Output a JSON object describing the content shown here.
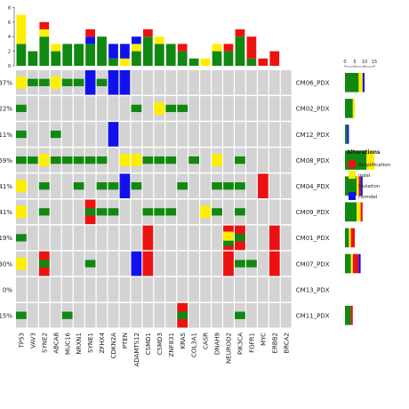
{
  "chart_data": {
    "type": "heatmap",
    "title": "",
    "genes": [
      "TP53",
      "VAV3",
      "SYNE2",
      "ABCA8",
      "MUC16",
      "NRXN1",
      "SYNE1",
      "ZFHX4",
      "CDKN2A",
      "PTEN",
      "ADAMTS12",
      "CSMD1",
      "CSMD3",
      "ZNF831",
      "KRAS",
      "COL3A1",
      "CASR",
      "DNAH9",
      "NEUROD2",
      "PIK3CA",
      "FGFR1",
      "MYC",
      "ERBB2",
      "BRCA2"
    ],
    "samples": [
      "CM06_PDX",
      "CM02_PDX",
      "CM12_PDX",
      "CM08_PDX",
      "CM04_PDX",
      "CM09_PDX",
      "CM01_PDX",
      "CM07_PDX",
      "CM13_PDX",
      "CM11_PDX"
    ],
    "frequency_labels": [
      "37%",
      "22%",
      "11%",
      "59%",
      "41%",
      "41%",
      "19%",
      "30%",
      "0%",
      "15%"
    ],
    "top_axis_ticks": [
      "0",
      "2",
      "4",
      "6",
      "8"
    ],
    "right_axis_ticks": [
      "0",
      "5",
      "10",
      "15"
    ],
    "legend": {
      "title": "Alterations",
      "items": [
        {
          "label": "Amplification",
          "color": "#ee1111"
        },
        {
          "label": "indel",
          "color": "#ffee00"
        },
        {
          "label": "Mutation",
          "color": "#118811"
        },
        {
          "label": "Homdel",
          "color": "#1111ee"
        }
      ]
    },
    "colors": {
      "background": "#d3d3d3",
      "amplification": "#ee1111",
      "indel": "#ffee00",
      "mutation": "#118811",
      "homdel": "#1111ee"
    },
    "cells": [
      {
        "sample": "CM06_PDX",
        "gene": "TP53",
        "types": [
          "indel"
        ]
      },
      {
        "sample": "CM06_PDX",
        "gene": "VAV3",
        "types": [
          "mutation"
        ]
      },
      {
        "sample": "CM06_PDX",
        "gene": "SYNE2",
        "types": [
          "mutation"
        ]
      },
      {
        "sample": "CM06_PDX",
        "gene": "ABCA8",
        "types": [
          "indel"
        ]
      },
      {
        "sample": "CM06_PDX",
        "gene": "MUC16",
        "types": [
          "mutation"
        ]
      },
      {
        "sample": "CM06_PDX",
        "gene": "NRXN1",
        "types": [
          "mutation"
        ]
      },
      {
        "sample": "CM06_PDX",
        "gene": "SYNE1",
        "types": [
          "homdel"
        ]
      },
      {
        "sample": "CM06_PDX",
        "gene": "ZFHX4",
        "types": [
          "mutation"
        ]
      },
      {
        "sample": "CM06_PDX",
        "gene": "CDKN2A",
        "types": [
          "homdel"
        ]
      },
      {
        "sample": "CM06_PDX",
        "gene": "PTEN",
        "types": [
          "homdel"
        ]
      },
      {
        "sample": "CM02_PDX",
        "gene": "TP53",
        "types": [
          "mutation"
        ]
      },
      {
        "sample": "CM02_PDX",
        "gene": "ADAMTS12",
        "types": [
          "mutation"
        ]
      },
      {
        "sample": "CM02_PDX",
        "gene": "CSMD3",
        "types": [
          "indel"
        ]
      },
      {
        "sample": "CM02_PDX",
        "gene": "ZNF831",
        "types": [
          "mutation"
        ]
      },
      {
        "sample": "CM02_PDX",
        "gene": "KRAS",
        "types": [
          "mutation"
        ]
      },
      {
        "sample": "CM12_PDX",
        "gene": "TP53",
        "types": [
          "mutation"
        ]
      },
      {
        "sample": "CM12_PDX",
        "gene": "ABCA8",
        "types": [
          "mutation"
        ]
      },
      {
        "sample": "CM12_PDX",
        "gene": "CDKN2A",
        "types": [
          "homdel"
        ]
      },
      {
        "sample": "CM08_PDX",
        "gene": "TP53",
        "types": [
          "mutation"
        ]
      },
      {
        "sample": "CM08_PDX",
        "gene": "VAV3",
        "types": [
          "mutation"
        ]
      },
      {
        "sample": "CM08_PDX",
        "gene": "SYNE2",
        "types": [
          "indel"
        ]
      },
      {
        "sample": "CM08_PDX",
        "gene": "ABCA8",
        "types": [
          "mutation"
        ]
      },
      {
        "sample": "CM08_PDX",
        "gene": "MUC16",
        "types": [
          "mutation"
        ]
      },
      {
        "sample": "CM08_PDX",
        "gene": "NRXN1",
        "types": [
          "mutation"
        ]
      },
      {
        "sample": "CM08_PDX",
        "gene": "SYNE1",
        "types": [
          "mutation"
        ]
      },
      {
        "sample": "CM08_PDX",
        "gene": "ZFHX4",
        "types": [
          "mutation"
        ]
      },
      {
        "sample": "CM08_PDX",
        "gene": "PTEN",
        "types": [
          "indel"
        ]
      },
      {
        "sample": "CM08_PDX",
        "gene": "ADAMTS12",
        "types": [
          "indel"
        ]
      },
      {
        "sample": "CM08_PDX",
        "gene": "CSMD1",
        "types": [
          "mutation"
        ]
      },
      {
        "sample": "CM08_PDX",
        "gene": "CSMD3",
        "types": [
          "mutation"
        ]
      },
      {
        "sample": "CM08_PDX",
        "gene": "ZNF831",
        "types": [
          "mutation"
        ]
      },
      {
        "sample": "CM08_PDX",
        "gene": "COL3A1",
        "types": [
          "mutation"
        ]
      },
      {
        "sample": "CM08_PDX",
        "gene": "DNAH9",
        "types": [
          "indel"
        ]
      },
      {
        "sample": "CM08_PDX",
        "gene": "PIK3CA",
        "types": [
          "mutation"
        ]
      },
      {
        "sample": "CM04_PDX",
        "gene": "TP53",
        "types": [
          "indel"
        ]
      },
      {
        "sample": "CM04_PDX",
        "gene": "SYNE2",
        "types": [
          "mutation"
        ]
      },
      {
        "sample": "CM04_PDX",
        "gene": "NRXN1",
        "types": [
          "mutation"
        ]
      },
      {
        "sample": "CM04_PDX",
        "gene": "ZFHX4",
        "types": [
          "mutation"
        ]
      },
      {
        "sample": "CM04_PDX",
        "gene": "CDKN2A",
        "types": [
          "mutation"
        ]
      },
      {
        "sample": "CM04_PDX",
        "gene": "PTEN",
        "types": [
          "homdel"
        ]
      },
      {
        "sample": "CM04_PDX",
        "gene": "ADAMTS12",
        "types": [
          "mutation"
        ]
      },
      {
        "sample": "CM04_PDX",
        "gene": "KRAS",
        "types": [
          "mutation"
        ]
      },
      {
        "sample": "CM04_PDX",
        "gene": "DNAH9",
        "types": [
          "mutation"
        ]
      },
      {
        "sample": "CM04_PDX",
        "gene": "NEUROD2",
        "types": [
          "mutation"
        ]
      },
      {
        "sample": "CM04_PDX",
        "gene": "PIK3CA",
        "types": [
          "mutation"
        ]
      },
      {
        "sample": "CM04_PDX",
        "gene": "MYC",
        "types": [
          "amplification"
        ]
      },
      {
        "sample": "CM09_PDX",
        "gene": "TP53",
        "types": [
          "indel"
        ]
      },
      {
        "sample": "CM09_PDX",
        "gene": "SYNE2",
        "types": [
          "mutation"
        ]
      },
      {
        "sample": "CM09_PDX",
        "gene": "SYNE1",
        "types": [
          "amplification",
          "mutation"
        ]
      },
      {
        "sample": "CM09_PDX",
        "gene": "ZFHX4",
        "types": [
          "mutation"
        ]
      },
      {
        "sample": "CM09_PDX",
        "gene": "CDKN2A",
        "types": [
          "mutation"
        ]
      },
      {
        "sample": "CM09_PDX",
        "gene": "CSMD1",
        "types": [
          "mutation"
        ]
      },
      {
        "sample": "CM09_PDX",
        "gene": "CSMD3",
        "types": [
          "mutation"
        ]
      },
      {
        "sample": "CM09_PDX",
        "gene": "ZNF831",
        "types": [
          "mutation"
        ]
      },
      {
        "sample": "CM09_PDX",
        "gene": "CASR",
        "types": [
          "indel"
        ]
      },
      {
        "sample": "CM09_PDX",
        "gene": "DNAH9",
        "types": [
          "mutation"
        ]
      },
      {
        "sample": "CM09_PDX",
        "gene": "PIK3CA",
        "types": [
          "mutation"
        ]
      },
      {
        "sample": "CM01_PDX",
        "gene": "TP53",
        "types": [
          "mutation"
        ]
      },
      {
        "sample": "CM01_PDX",
        "gene": "CSMD1",
        "types": [
          "amplification"
        ]
      },
      {
        "sample": "CM01_PDX",
        "gene": "NEUROD2",
        "types": [
          "amplification",
          "indel",
          "mutation"
        ]
      },
      {
        "sample": "CM01_PDX",
        "gene": "PIK3CA",
        "types": [
          "amplification",
          "mutation"
        ]
      },
      {
        "sample": "CM01_PDX",
        "gene": "ERBB2",
        "types": [
          "amplification"
        ]
      },
      {
        "sample": "CM07_PDX",
        "gene": "TP53",
        "types": [
          "indel"
        ]
      },
      {
        "sample": "CM07_PDX",
        "gene": "SYNE2",
        "types": [
          "amplification",
          "mutation"
        ]
      },
      {
        "sample": "CM07_PDX",
        "gene": "SYNE1",
        "types": [
          "mutation"
        ]
      },
      {
        "sample": "CM07_PDX",
        "gene": "ADAMTS12",
        "types": [
          "homdel"
        ]
      },
      {
        "sample": "CM07_PDX",
        "gene": "CSMD1",
        "types": [
          "amplification"
        ]
      },
      {
        "sample": "CM07_PDX",
        "gene": "NEUROD2",
        "types": [
          "amplification"
        ]
      },
      {
        "sample": "CM07_PDX",
        "gene": "PIK3CA",
        "types": [
          "mutation"
        ]
      },
      {
        "sample": "CM07_PDX",
        "gene": "FGFR1",
        "types": [
          "mutation"
        ]
      },
      {
        "sample": "CM07_PDX",
        "gene": "ERBB2",
        "types": [
          "amplification"
        ]
      },
      {
        "sample": "CM11_PDX",
        "gene": "TP53",
        "types": [
          "mutation"
        ]
      },
      {
        "sample": "CM11_PDX",
        "gene": "MUC16",
        "types": [
          "mutation"
        ]
      },
      {
        "sample": "CM11_PDX",
        "gene": "KRAS",
        "types": [
          "amplification",
          "mutation"
        ]
      },
      {
        "sample": "CM11_PDX",
        "gene": "PIK3CA",
        "types": [
          "mutation"
        ]
      }
    ],
    "top_bars": [
      {
        "gene": "TP53",
        "segments": [
          {
            "type": "mutation",
            "value": 3
          },
          {
            "type": "indel",
            "value": 4
          }
        ]
      },
      {
        "gene": "VAV3",
        "segments": [
          {
            "type": "mutation",
            "value": 2
          }
        ]
      },
      {
        "gene": "SYNE2",
        "segments": [
          {
            "type": "mutation",
            "value": 4
          },
          {
            "type": "indel",
            "value": 1
          },
          {
            "type": "amplification",
            "value": 1
          }
        ]
      },
      {
        "gene": "ABCA8",
        "segments": [
          {
            "type": "mutation",
            "value": 2
          },
          {
            "type": "indel",
            "value": 1
          }
        ]
      },
      {
        "gene": "MUC16",
        "segments": [
          {
            "type": "mutation",
            "value": 3
          }
        ]
      },
      {
        "gene": "NRXN1",
        "segments": [
          {
            "type": "mutation",
            "value": 3
          }
        ]
      },
      {
        "gene": "SYNE1",
        "segments": [
          {
            "type": "mutation",
            "value": 3
          },
          {
            "type": "homdel",
            "value": 1
          },
          {
            "type": "amplification",
            "value": 1
          }
        ]
      },
      {
        "gene": "ZFHX4",
        "segments": [
          {
            "type": "mutation",
            "value": 4
          }
        ]
      },
      {
        "gene": "CDKN2A",
        "segments": [
          {
            "type": "mutation",
            "value": 1
          },
          {
            "type": "homdel",
            "value": 2
          }
        ]
      },
      {
        "gene": "PTEN",
        "segments": [
          {
            "type": "indel",
            "value": 1
          },
          {
            "type": "homdel",
            "value": 2
          }
        ]
      },
      {
        "gene": "ADAMTS12",
        "segments": [
          {
            "type": "mutation",
            "value": 2
          },
          {
            "type": "indel",
            "value": 1
          },
          {
            "type": "homdel",
            "value": 1
          }
        ]
      },
      {
        "gene": "CSMD1",
        "segments": [
          {
            "type": "mutation",
            "value": 4
          },
          {
            "type": "amplification",
            "value": 1
          }
        ]
      },
      {
        "gene": "CSMD3",
        "segments": [
          {
            "type": "mutation",
            "value": 3
          },
          {
            "type": "indel",
            "value": 1
          }
        ]
      },
      {
        "gene": "ZNF831",
        "segments": [
          {
            "type": "mutation",
            "value": 3
          }
        ]
      },
      {
        "gene": "KRAS",
        "segments": [
          {
            "type": "mutation",
            "value": 2
          },
          {
            "type": "amplification",
            "value": 1
          }
        ]
      },
      {
        "gene": "COL3A1",
        "segments": [
          {
            "type": "mutation",
            "value": 1
          }
        ]
      },
      {
        "gene": "CASR",
        "segments": [
          {
            "type": "indel",
            "value": 1
          }
        ]
      },
      {
        "gene": "DNAH9",
        "segments": [
          {
            "type": "mutation",
            "value": 2
          },
          {
            "type": "indel",
            "value": 1
          }
        ]
      },
      {
        "gene": "NEUROD2",
        "segments": [
          {
            "type": "mutation",
            "value": 2
          },
          {
            "type": "amplification",
            "value": 1
          }
        ]
      },
      {
        "gene": "PIK3CA",
        "segments": [
          {
            "type": "mutation",
            "value": 4
          },
          {
            "type": "amplification",
            "value": 1
          }
        ]
      },
      {
        "gene": "FGFR1",
        "segments": [
          {
            "type": "mutation",
            "value": 1
          },
          {
            "type": "amplification",
            "value": 3
          }
        ]
      },
      {
        "gene": "MYC",
        "segments": [
          {
            "type": "amplification",
            "value": 1
          }
        ]
      },
      {
        "gene": "ERBB2",
        "segments": [
          {
            "type": "amplification",
            "value": 2
          }
        ]
      },
      {
        "gene": "BRCA2",
        "segments": []
      }
    ],
    "right_bars": [
      {
        "sample": "CM06_PDX",
        "segments": [
          {
            "type": "mutation",
            "value": 7
          },
          {
            "type": "indel",
            "value": 2
          },
          {
            "type": "homdel",
            "value": 1
          }
        ]
      },
      {
        "sample": "CM02_PDX",
        "segments": [
          {
            "type": "mutation",
            "value": 4
          },
          {
            "type": "indel",
            "value": 1
          }
        ]
      },
      {
        "sample": "CM12_PDX",
        "segments": [
          {
            "type": "mutation",
            "value": 1
          },
          {
            "type": "homdel",
            "value": 1
          }
        ]
      },
      {
        "sample": "CM08_PDX",
        "segments": [
          {
            "type": "mutation",
            "value": 11
          },
          {
            "type": "indel",
            "value": 4
          }
        ]
      },
      {
        "sample": "CM04_PDX",
        "segments": [
          {
            "type": "mutation",
            "value": 6
          },
          {
            "type": "indel",
            "value": 1
          },
          {
            "type": "amplification",
            "value": 1
          },
          {
            "type": "homdel",
            "value": 1
          }
        ]
      },
      {
        "sample": "CM09_PDX",
        "segments": [
          {
            "type": "mutation",
            "value": 6
          },
          {
            "type": "indel",
            "value": 2
          },
          {
            "type": "amplification",
            "value": 1
          }
        ]
      },
      {
        "sample": "CM01_PDX",
        "segments": [
          {
            "type": "mutation",
            "value": 2
          },
          {
            "type": "indel",
            "value": 1
          },
          {
            "type": "amplification",
            "value": 2
          }
        ]
      },
      {
        "sample": "CM07_PDX",
        "segments": [
          {
            "type": "mutation",
            "value": 3
          },
          {
            "type": "indel",
            "value": 1
          },
          {
            "type": "amplification",
            "value": 3
          },
          {
            "type": "homdel",
            "value": 1
          }
        ]
      },
      {
        "sample": "CM13_PDX",
        "segments": []
      },
      {
        "sample": "CM11_PDX",
        "segments": [
          {
            "type": "mutation",
            "value": 3
          },
          {
            "type": "amplification",
            "value": 1
          }
        ]
      }
    ]
  }
}
